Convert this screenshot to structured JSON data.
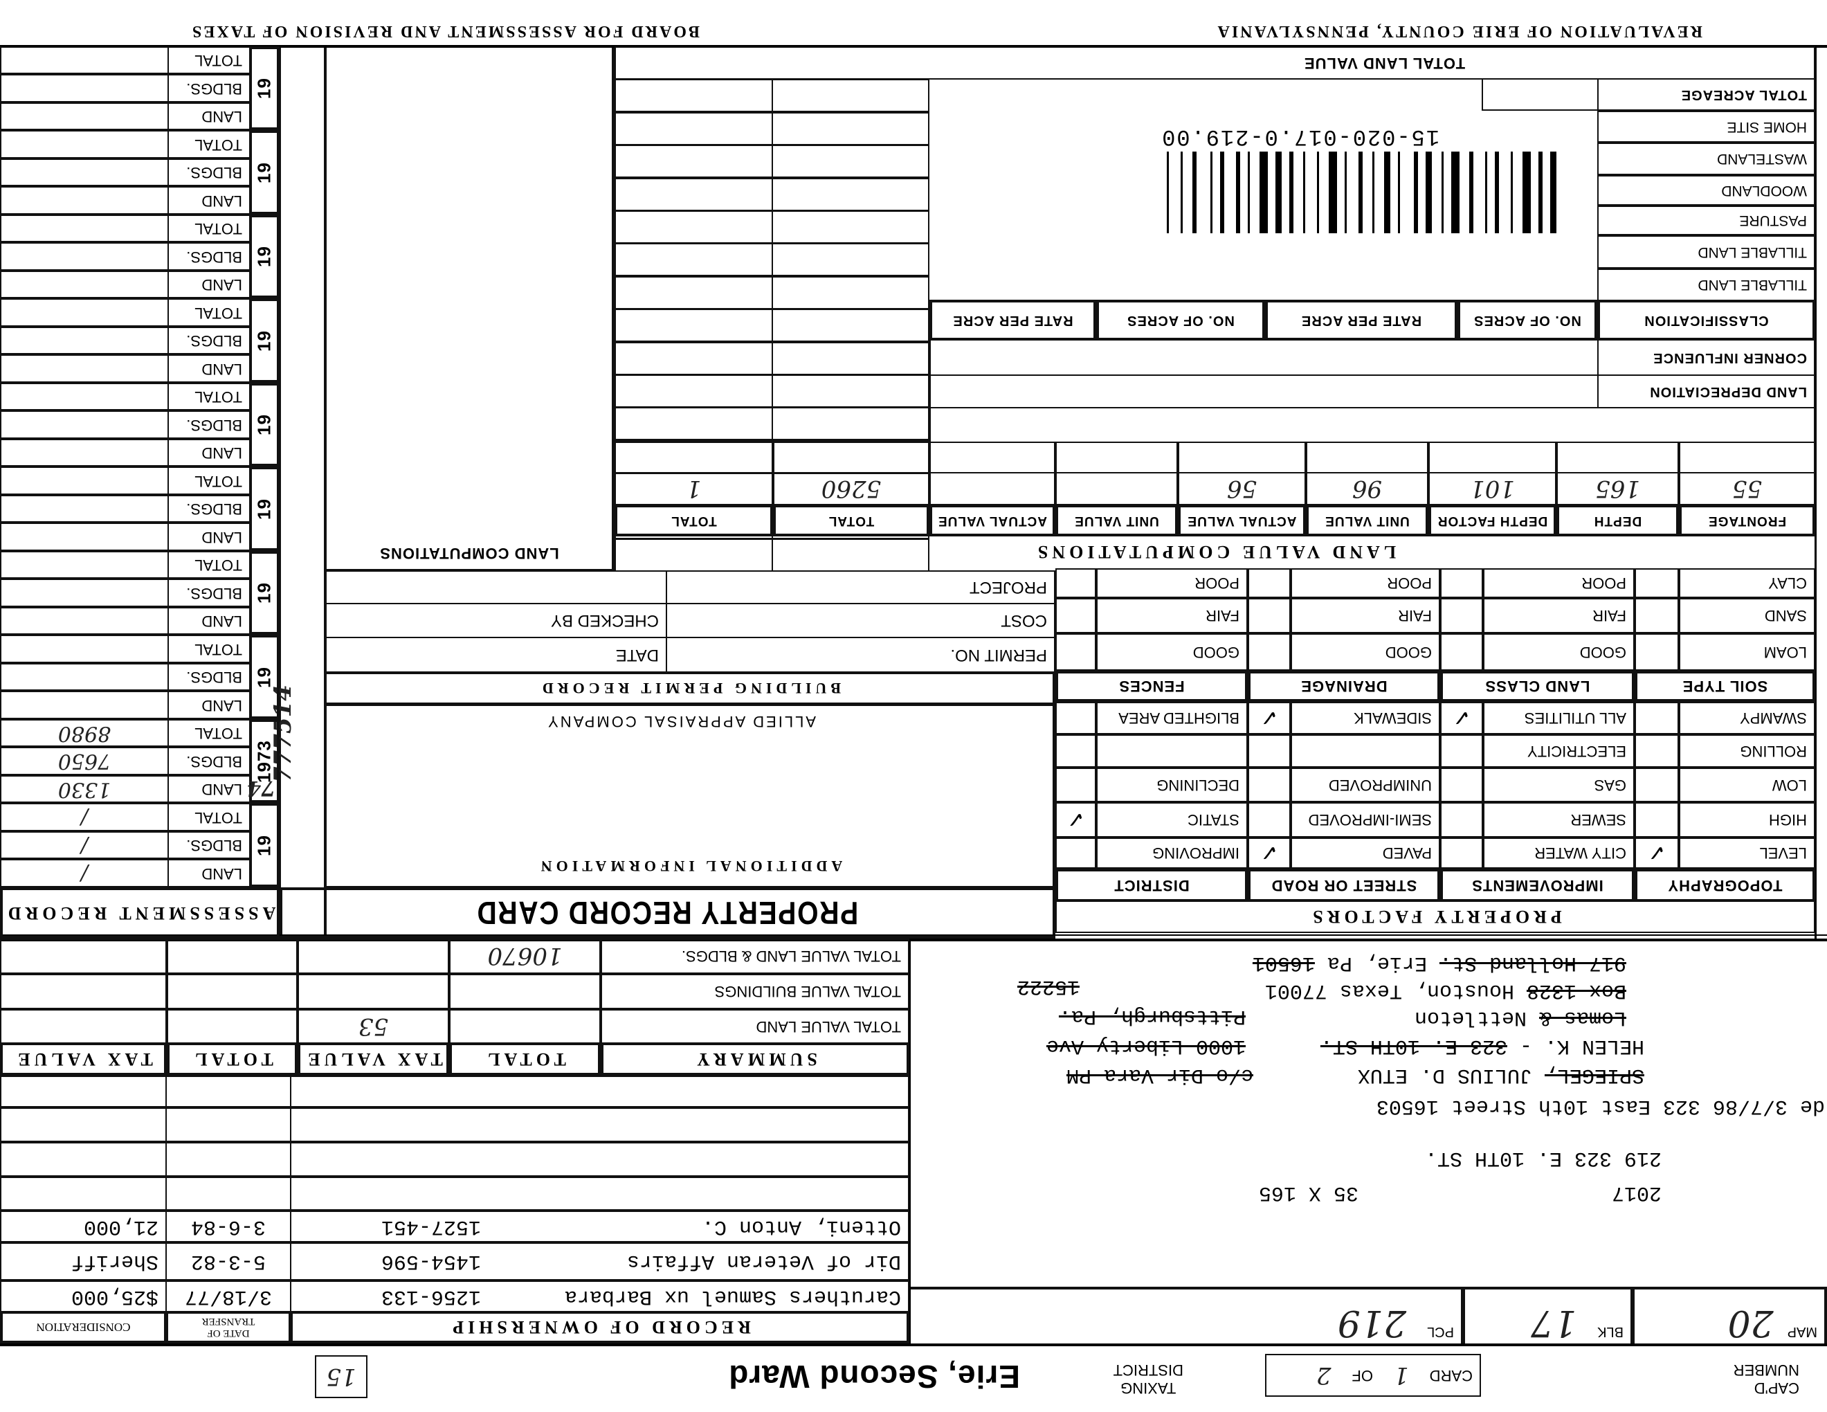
{
  "header": {
    "county": "REVALUATION OF ERIE COUNTY, PENNSYLVANIA",
    "board": "BOARD FOR ASSESSMENT AND REVISION OF TAXES"
  },
  "top": {
    "capd_label_1": "CAP'D",
    "capd_label_2": "NUMBER",
    "card_label": "CARD",
    "card_no": "1",
    "of_label": "OF",
    "card_of": "2",
    "taxing_label_1": "TAXING",
    "taxing_label_2": "DISTRICT",
    "district": "Erie, Second Ward",
    "box_no": "15"
  },
  "parcel": {
    "map_label": "MAP",
    "map": "20",
    "blk_label": "BLK",
    "blk": "17",
    "pcl_label": "PCL",
    "pcl": "219"
  },
  "address": [
    {
      "parts": [
        {
          "text": "2017",
          "struck": false
        }
      ]
    },
    {
      "parts": [
        {
          "text": "35 X 165",
          "struck": false
        }
      ]
    },
    {
      "parts": [
        {
          "text": "219   323 E. 10TH ST.",
          "struck": false
        }
      ]
    },
    {
      "parts": [
        {
          "text": "de 3/7/86 323 East 10th Street 16503",
          "struck": false
        }
      ]
    },
    {
      "parts": [
        {
          "text": "SPIEGEL,",
          "struck": true
        },
        {
          "text": " JULIUS D. ETUX",
          "struck": false
        }
      ]
    },
    {
      "parts": [
        {
          "text": "c/o Dir Vara PM",
          "struck": true
        }
      ]
    },
    {
      "parts": [
        {
          "text": "HELEN K. - ",
          "struck": false
        },
        {
          "text": "323 E. 10TH ST.",
          "struck": true
        }
      ]
    },
    {
      "parts": [
        {
          "text": "1000 Liberty Ave",
          "struck": true
        }
      ]
    },
    {
      "parts": [
        {
          "text": "Lomas &",
          "struck": true
        },
        {
          "text": " Nettleton",
          "struck": false
        }
      ]
    },
    {
      "parts": [
        {
          "text": "Pittsburgh, Pa.",
          "struck": true
        }
      ]
    },
    {
      "parts": [
        {
          "text": "Box 1328",
          "struck": true
        },
        {
          "text": " Houston, Texas 77001",
          "struck": false
        }
      ]
    },
    {
      "parts": [
        {
          "text": "15222",
          "struck": true
        }
      ]
    },
    {
      "parts": [
        {
          "text": "917 Holland St.",
          "struck": true
        },
        {
          "text": " Erie, Pa ",
          "struck": false
        },
        {
          "text": "16501",
          "struck": true
        }
      ]
    }
  ],
  "ownership": {
    "title": "RECORD OF OWNERSHIP",
    "date_label_1": "DATE OF",
    "date_label_2": "TRANSFER",
    "consideration_label": "CONSIDERATION",
    "rows": [
      {
        "name": "Caruthers Samuel ux Barbara",
        "book": "1256-133",
        "date": "3/18/77",
        "consideration": "$25,000"
      },
      {
        "name": "Dir of Veteran Affairs",
        "book": "1454-596",
        "date": "5-3-82",
        "consideration": "Sheriff"
      },
      {
        "name": "Otteni, Anton C.",
        "book": "1527-451",
        "date": "3-6-84",
        "consideration": "21,000"
      },
      {
        "name": "",
        "book": "",
        "date": "",
        "consideration": ""
      },
      {
        "name": "",
        "book": "",
        "date": "",
        "consideration": ""
      },
      {
        "name": "",
        "book": "",
        "date": "",
        "consideration": ""
      },
      {
        "name": "",
        "book": "",
        "date": "",
        "consideration": ""
      }
    ]
  },
  "summary": {
    "headers": [
      "SUMMARY",
      "TOTAL",
      "TAX VALUE",
      "TOTAL",
      "TAX VALUE"
    ],
    "rows": [
      {
        "label": "TOTAL VALUE LAND",
        "values": [
          "",
          "53",
          "",
          ""
        ]
      },
      {
        "label": "TOTAL VALUE BUILDINGS",
        "values": [
          "",
          "",
          "",
          ""
        ]
      },
      {
        "label": "TOTAL VALUE LAND & BLDGS.",
        "values": [
          "10670",
          "",
          "",
          ""
        ]
      }
    ]
  },
  "property_factors": {
    "title": "PROPERTY FACTORS",
    "group_headers": [
      "TOPOGRAPHY",
      "IMPROVEMENTS",
      "STREET OR ROAD",
      "DISTRICT"
    ],
    "rows": [
      [
        "LEVEL",
        "CITY WATER",
        "PAVED",
        "IMPROVING"
      ],
      [
        "HIGH",
        "SEWER",
        "SEMI-IMPROVED",
        "STATIC"
      ],
      [
        "LOW",
        "GAS",
        "UNIMPROVED",
        "DECLINING"
      ],
      [
        "ROLLING",
        "ELECTRICITY",
        "",
        ""
      ],
      [
        "SWAMPY",
        "ALL UTILITIES",
        "SIDEWALK",
        "BLIGHTED AREA"
      ]
    ],
    "checks": [
      [
        "✓",
        "",
        "✓",
        ""
      ],
      [
        "",
        "",
        "",
        "✓"
      ],
      [
        "",
        "",
        "",
        ""
      ],
      [
        "",
        "",
        "",
        ""
      ],
      [
        "",
        "✓",
        "✓",
        ""
      ]
    ],
    "soil_headers": [
      "SOIL TYPE",
      "LAND CLASS",
      "DRAINAGE",
      "FENCES"
    ],
    "soil_rows": [
      [
        "LOAM",
        "GOOD",
        "GOOD",
        "GOOD"
      ],
      [
        "SAND",
        "FAIR",
        "FAIR",
        "FAIR"
      ],
      [
        "CLAY",
        "POOR",
        "POOR",
        "POOR"
      ]
    ]
  },
  "land_value": {
    "title": "LAND VALUE COMPUTATIONS",
    "headers": [
      "FRONTAGE",
      "DEPTH",
      "DEPTH FACTOR",
      "UNIT VALUE",
      "ACTUAL VALUE",
      "UNIT VALUE",
      "ACTUAL VALUE",
      "TOTAL",
      "TOTAL"
    ],
    "values": [
      "55",
      "165",
      "101",
      "96",
      "56",
      "",
      "",
      "5260",
      "1"
    ]
  },
  "land_table": {
    "depreciation": "LAND DEPRECIATION",
    "corner": "CORNER INFLUENCE",
    "class_headers": [
      "CLASSIFICATION",
      "NO. OF ACRES",
      "RATE PER ACRE",
      "NO. OF ACRES",
      "RATE PER ACRE"
    ],
    "classes": [
      "TILLABLE LAND",
      "TILLABLE LAND",
      "PASTURE",
      "WOODLAND",
      "WASTELAND",
      "HOME SITE"
    ],
    "total_acreage": "TOTAL ACREAGE",
    "total_land_value": "TOTAL LAND VALUE",
    "barcode_text": "15-020-017.0-219.00"
  },
  "middle": {
    "card_title": "PROPERTY RECORD CARD",
    "additional_info": "ADDITIONAL INFORMATION",
    "company": "ALLIED APPRAISAL COMPANY",
    "permit_title": "BUILDING PERMIT RECORD",
    "permit_no": "PERMIT NO.",
    "date": "DATE",
    "cost": "COST",
    "checked_by": "CHECKED BY",
    "project": "PROJECT",
    "land_computations": "LAND COMPUTATIONS",
    "side_note": "777514"
  },
  "assessment": {
    "title": "ASSESSMENT RECORD",
    "labels": [
      "LAND",
      "BLDGS.",
      "TOTAL"
    ],
    "blocks": [
      {
        "year": "19",
        "stamp": "",
        "land": "/",
        "bldgs": "/",
        "total": "/"
      },
      {
        "year": "1973",
        "stamp": "74",
        "land": "1330",
        "bldgs": "7650",
        "total": "8980"
      },
      {
        "year": "19",
        "stamp": "",
        "land": "",
        "bldgs": "",
        "total": ""
      },
      {
        "year": "19",
        "stamp": "",
        "land": "",
        "bldgs": "",
        "total": ""
      },
      {
        "year": "19",
        "stamp": "",
        "land": "",
        "bldgs": "",
        "total": ""
      },
      {
        "year": "19",
        "stamp": "",
        "land": "",
        "bldgs": "",
        "total": ""
      },
      {
        "year": "19",
        "stamp": "",
        "land": "",
        "bldgs": "",
        "total": ""
      },
      {
        "year": "19",
        "stamp": "",
        "land": "",
        "bldgs": "",
        "total": ""
      },
      {
        "year": "19",
        "stamp": "",
        "land": "",
        "bldgs": "",
        "total": ""
      },
      {
        "year": "19",
        "stamp": "",
        "land": "",
        "bldgs": "",
        "total": ""
      }
    ]
  }
}
